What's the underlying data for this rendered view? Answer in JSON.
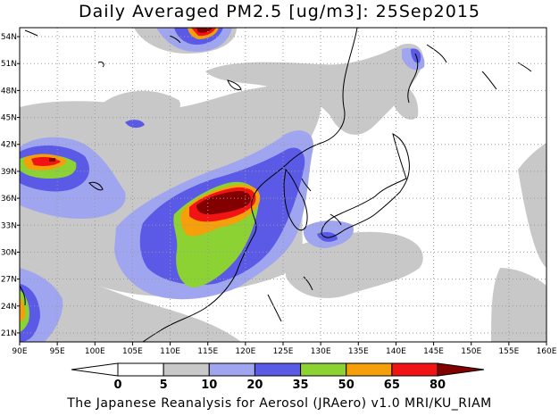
{
  "title": "Daily Averaged PM2.5 [ug/m3]: 25Sep2015",
  "credit": "The Japanese Reanalysis for Aerosol (JRAero) v1.0 MRI/KU_RIAM",
  "axes": {
    "lon_range": [
      90,
      160
    ],
    "lat_range": [
      20,
      55
    ],
    "lon_ticks": [
      "90E",
      "95E",
      "100E",
      "105E",
      "110E",
      "115E",
      "120E",
      "125E",
      "130E",
      "135E",
      "140E",
      "145E",
      "150E",
      "155E",
      "160E"
    ],
    "lat_ticks": [
      "21N",
      "24N",
      "27N",
      "30N",
      "33N",
      "36N",
      "39N",
      "42N",
      "45N",
      "48N",
      "51N",
      "54N"
    ],
    "grid": "dotted"
  },
  "colorbar": {
    "labels": [
      "0",
      "5",
      "10",
      "20",
      "35",
      "50",
      "65",
      "80"
    ],
    "colors": [
      "#ffffff",
      "#c8c8c8",
      "#a0a5f0",
      "#5a5ae6",
      "#8cd232",
      "#f5a00a",
      "#f01414",
      "#820000"
    ],
    "extends": "both"
  },
  "map_icons": [
    "coastline",
    "pm25-shaded-contours"
  ]
}
